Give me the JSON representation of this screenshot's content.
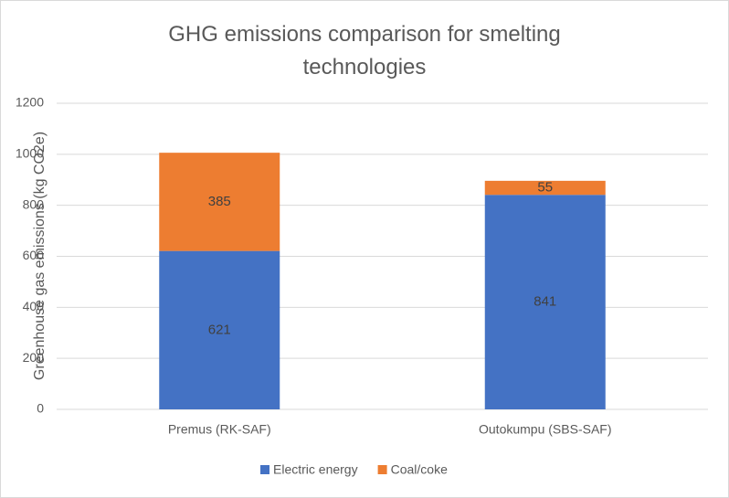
{
  "chart_data": {
    "type": "bar",
    "stacked": true,
    "title": "GHG emissions comparison for smelting technologies",
    "y_label": "Greenhouse gas emissions (kg CO2e)",
    "categories": [
      "Premus (RK-SAF)",
      "Outokumpu (SBS-SAF)"
    ],
    "series": [
      {
        "name": "Electric energy",
        "color": "#4472c4",
        "values": [
          621,
          841
        ]
      },
      {
        "name": "Coal/coke",
        "color": "#ed7d31",
        "values": [
          385,
          55
        ]
      }
    ],
    "ylim": [
      0,
      1200
    ],
    "yticks": [
      0,
      200,
      400,
      600,
      800,
      1000,
      1200
    ],
    "grid": true,
    "legend": "bottom",
    "data_labels": true
  }
}
